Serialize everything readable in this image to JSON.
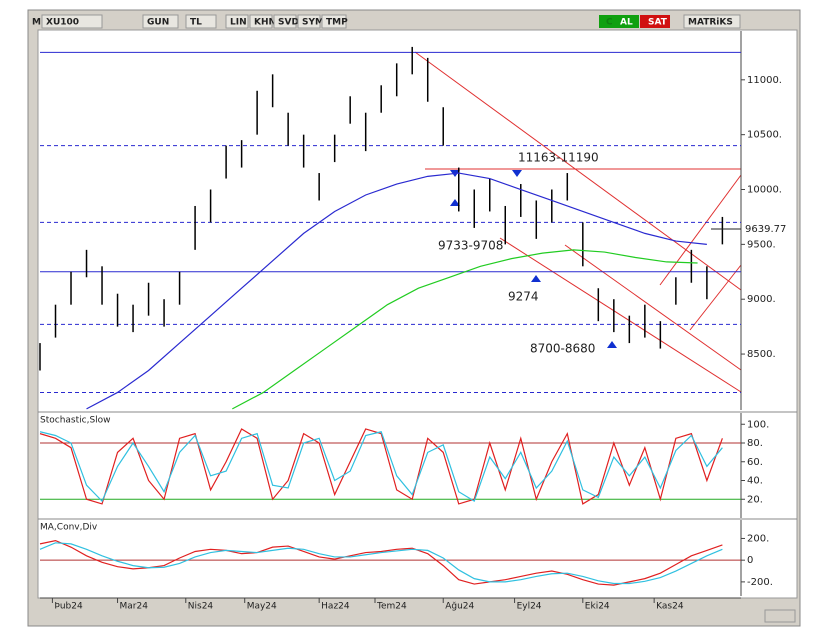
{
  "toolbar": {
    "items": [
      "M",
      "XU100",
      "GUN",
      "TL",
      "LIN",
      "KHN",
      "SVD",
      "SYM",
      "TMP",
      "C",
      "AL",
      "SAT",
      "MATRiKS"
    ]
  },
  "chart_data": [
    {
      "type": "hilo",
      "x": [
        0,
        5,
        10,
        15,
        20,
        25,
        30,
        35,
        40,
        45,
        50,
        55,
        60,
        65,
        70,
        75,
        80,
        85,
        90,
        95,
        100,
        105,
        110,
        115,
        120,
        125,
        130,
        135,
        140,
        145,
        150,
        155,
        160,
        165,
        170,
        175,
        180,
        185,
        190,
        195,
        200,
        205,
        210,
        215,
        220
      ],
      "high": [
        8600,
        8950,
        9250,
        9450,
        9300,
        9050,
        8950,
        9150,
        9000,
        9250,
        9850,
        10000,
        10400,
        10450,
        10900,
        11050,
        10700,
        10500,
        10150,
        10500,
        10850,
        10700,
        10950,
        11150,
        11300,
        11200,
        10750,
        10200,
        10000,
        10100,
        9850,
        10050,
        9900,
        10000,
        10150,
        9700,
        9100,
        9000,
        8850,
        8950,
        8800,
        9200,
        9450,
        9300,
        9750
      ],
      "low": [
        8350,
        8650,
        8950,
        9200,
        8950,
        8750,
        8700,
        8850,
        8750,
        8950,
        9450,
        9700,
        10100,
        10200,
        10500,
        10750,
        10400,
        10200,
        9900,
        10250,
        10600,
        10350,
        10700,
        10850,
        11050,
        10800,
        10400,
        9800,
        9650,
        9800,
        9500,
        9750,
        9550,
        9700,
        9900,
        9300,
        8800,
        8700,
        8600,
        8650,
        8550,
        8950,
        9150,
        9000,
        9500
      ],
      "color": "#000000",
      "series": [
        {
          "color": "#2a2ad0",
          "x": [
            15,
            25,
            35,
            45,
            55,
            65,
            75,
            85,
            95,
            105,
            115,
            125,
            135,
            145,
            155,
            165,
            175,
            185,
            195,
            205,
            215
          ],
          "values": [
            8000,
            8150,
            8350,
            8600,
            8850,
            9100,
            9350,
            9600,
            9800,
            9950,
            10050,
            10120,
            10150,
            10100,
            10000,
            9900,
            9800,
            9700,
            9600,
            9530,
            9500
          ]
        },
        {
          "color": "#22cc22",
          "x": [
            62,
            72,
            82,
            92,
            102,
            112,
            122,
            132,
            142,
            152,
            162,
            172,
            182,
            192,
            202,
            212
          ],
          "values": [
            8000,
            8150,
            8350,
            8550,
            8750,
            8950,
            9100,
            9200,
            9300,
            9370,
            9420,
            9450,
            9430,
            9380,
            9340,
            9330
          ]
        }
      ],
      "hlines": [
        {
          "value": 11250,
          "color": "#2a2ad0",
          "dashed": false
        },
        {
          "value": 10400,
          "color": "#2a2ad0",
          "dashed": true
        },
        {
          "value": 9700,
          "color": "#2a2ad0",
          "dashed": true
        },
        {
          "value": 9250,
          "color": "#2a2ad0",
          "dashed": false
        },
        {
          "value": 8770,
          "color": "#2a2ad0",
          "dashed": true
        },
        {
          "value": 8150,
          "color": "#2a2ad0",
          "dashed": true
        }
      ],
      "ylim": [
        7990,
        11445
      ],
      "yticks": [
        {
          "value": 11000,
          "label": "11000."
        },
        {
          "value": 10500,
          "label": "10500."
        },
        {
          "value": 10000,
          "label": "10000."
        },
        {
          "value": 9500,
          "label": "9500."
        },
        {
          "value": 9000,
          "label": "9000."
        },
        {
          "value": 8500,
          "label": "8500."
        }
      ],
      "last_price": {
        "value": 9639.77,
        "label": "9639.77"
      },
      "annotations": [
        "11163-11190",
        "9733-9708",
        "9274",
        "8700-8680"
      ],
      "xlim": [
        0,
        226
      ],
      "xticks": [
        {
          "value": 4,
          "label": "Þub24"
        },
        {
          "value": 25,
          "label": "Mar24"
        },
        {
          "value": 47,
          "label": "Nis24"
        },
        {
          "value": 66,
          "label": "May24"
        },
        {
          "value": 90,
          "label": "Haz24"
        },
        {
          "value": 108,
          "label": "Tem24"
        },
        {
          "value": 130,
          "label": "Ağu24"
        },
        {
          "value": 153,
          "label": "Eyl24"
        },
        {
          "value": 175,
          "label": "Eki24"
        },
        {
          "value": 198,
          "label": "Kas24"
        }
      ]
    },
    {
      "type": "line",
      "title": "Stochastic,Slow",
      "series": [
        {
          "color": "#e02020",
          "values": [
            90,
            85,
            75,
            20,
            15,
            70,
            85,
            40,
            20,
            85,
            90,
            30,
            60,
            95,
            85,
            20,
            40,
            90,
            80,
            25,
            60,
            95,
            90,
            30,
            20,
            85,
            70,
            15,
            20,
            80,
            30,
            85,
            20,
            60,
            90,
            15,
            25,
            80,
            35,
            75,
            20,
            85,
            90,
            40,
            85
          ]
        },
        {
          "color": "#30c0e0",
          "values": [
            92,
            88,
            80,
            35,
            18,
            55,
            80,
            55,
            28,
            70,
            88,
            45,
            50,
            85,
            90,
            35,
            32,
            80,
            85,
            40,
            50,
            88,
            92,
            45,
            25,
            70,
            78,
            28,
            18,
            65,
            42,
            70,
            32,
            50,
            82,
            30,
            22,
            65,
            45,
            65,
            32,
            72,
            88,
            55,
            75
          ]
        }
      ],
      "hlines": [
        {
          "value": 80,
          "color": "#b03030"
        },
        {
          "value": 20,
          "color": "#22aa22"
        }
      ],
      "ylim": [
        0,
        112
      ],
      "yticks": [
        {
          "value": 100,
          "label": "100."
        },
        {
          "value": 80,
          "label": "80."
        },
        {
          "value": 60,
          "label": "60."
        },
        {
          "value": 40,
          "label": "40."
        },
        {
          "value": 20,
          "label": "20."
        }
      ]
    },
    {
      "type": "line",
      "title": "MA,Conv,Div",
      "series": [
        {
          "color": "#e02020",
          "values": [
            150,
            180,
            120,
            40,
            -20,
            -60,
            -80,
            -70,
            -50,
            20,
            80,
            100,
            90,
            60,
            70,
            120,
            130,
            80,
            30,
            10,
            40,
            70,
            80,
            100,
            110,
            60,
            -50,
            -180,
            -220,
            -200,
            -180,
            -150,
            -120,
            -100,
            -130,
            -180,
            -220,
            -230,
            -200,
            -170,
            -120,
            -40,
            40,
            90,
            140
          ]
        },
        {
          "color": "#30c0e0",
          "values": [
            100,
            160,
            150,
            100,
            40,
            -10,
            -50,
            -70,
            -65,
            -30,
            30,
            70,
            90,
            80,
            70,
            90,
            110,
            100,
            60,
            30,
            30,
            50,
            70,
            85,
            100,
            90,
            20,
            -90,
            -170,
            -200,
            -200,
            -180,
            -150,
            -125,
            -120,
            -150,
            -190,
            -215,
            -215,
            -195,
            -160,
            -100,
            -30,
            40,
            100
          ]
        }
      ],
      "hlines": [
        {
          "value": 0,
          "color": "#b03030"
        }
      ],
      "ylim": [
        -330,
        370
      ],
      "yticks": [
        {
          "value": 200,
          "label": "200."
        },
        0,
        {
          "value": -200,
          "label": "-200."
        }
      ]
    }
  ]
}
